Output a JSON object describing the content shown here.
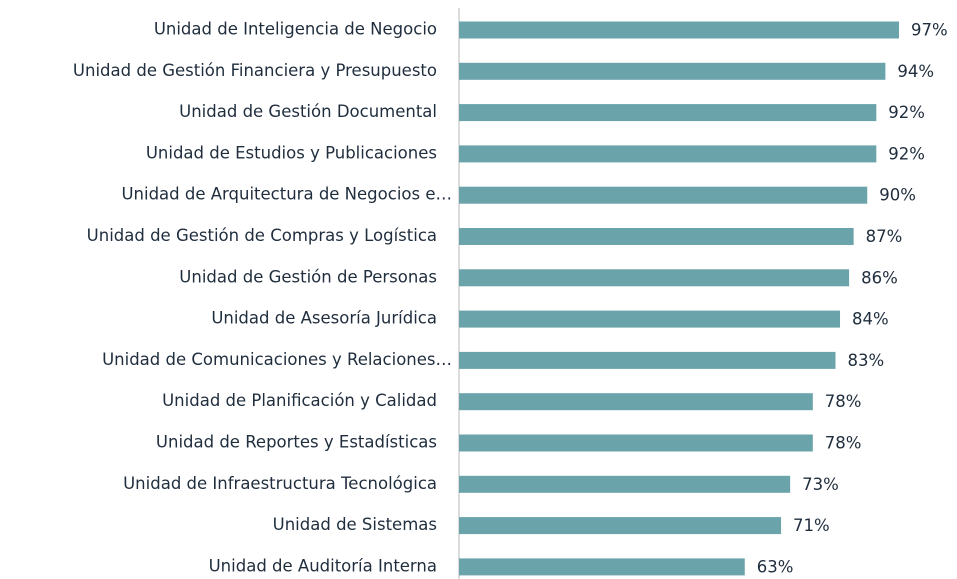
{
  "chart_data": {
    "type": "bar",
    "orientation": "horizontal",
    "categories": [
      "Unidad de Inteligencia de Negocio",
      "Unidad de Gestión Financiera y Presupuesto",
      "Unidad de Gestión Documental",
      "Unidad de Estudios y Publicaciones",
      "Unidad de Arquitectura de Negocios e…",
      "Unidad de Gestión de Compras y Logística",
      "Unidad de Gestión de Personas",
      "Unidad de Asesoría Jurídica",
      "Unidad de Comunicaciones y Relaciones…",
      "Unidad de Planificación y Calidad",
      "Unidad de Reportes y Estadísticas",
      "Unidad de Infraestructura Tecnológica",
      "Unidad de Sistemas",
      "Unidad de Auditoría Interna"
    ],
    "values": [
      97,
      94,
      92,
      92,
      90,
      87,
      86,
      84,
      83,
      78,
      78,
      73,
      71,
      63
    ],
    "value_labels": [
      "97%",
      "94%",
      "92%",
      "92%",
      "90%",
      "87%",
      "86%",
      "84%",
      "83%",
      "78%",
      "78%",
      "73%",
      "71%",
      "63%"
    ],
    "color": "#6aa3a9",
    "xlim": [
      0,
      100
    ]
  }
}
